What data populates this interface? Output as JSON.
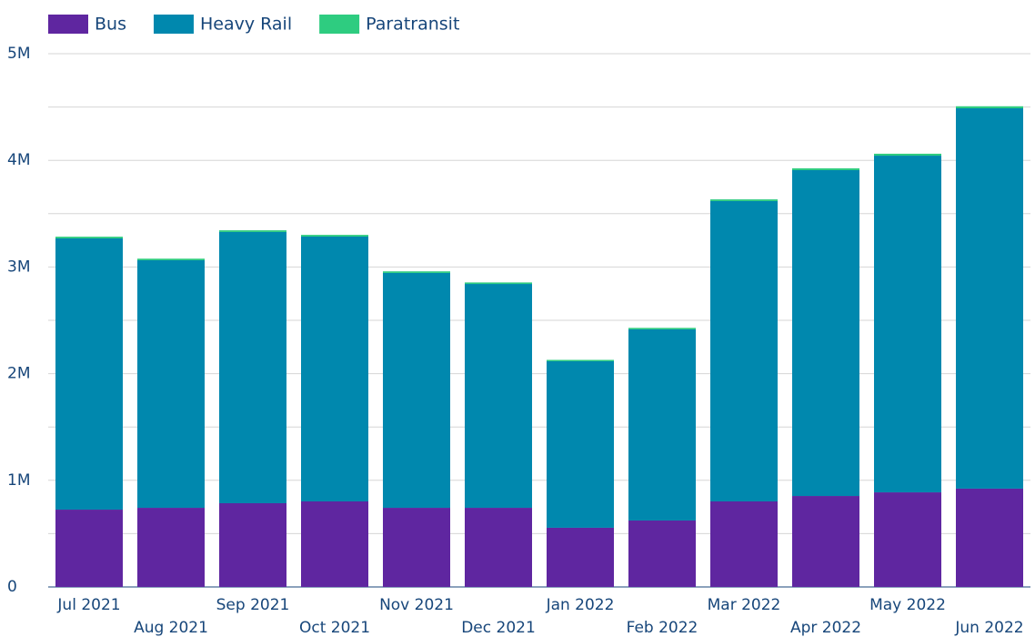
{
  "chart_data": {
    "type": "stacked_bar",
    "categories": [
      "Jul 2021",
      "Aug 2021",
      "Sep 2021",
      "Oct 2021",
      "Nov 2021",
      "Dec 2021",
      "Jan 2022",
      "Feb 2022",
      "Mar 2022",
      "Apr 2022",
      "May 2022",
      "Jun 2022"
    ],
    "series": [
      {
        "name": "Bus",
        "color": "#5f26a0",
        "values": [
          725000,
          742000,
          785000,
          802000,
          742000,
          742000,
          555000,
          623000,
          802000,
          853000,
          887000,
          922000
        ]
      },
      {
        "name": "Heavy Rail",
        "color": "#0088ae",
        "values": [
          2543000,
          2321000,
          2543000,
          2483000,
          2202000,
          2099000,
          1561000,
          1792000,
          2816000,
          3055000,
          3157000,
          3566000
        ]
      },
      {
        "name": "Paratransit",
        "color": "#2ecc80",
        "values": [
          16000,
          15000,
          16000,
          16000,
          15000,
          14000,
          13000,
          14000,
          16000,
          17000,
          18000,
          19000
        ]
      }
    ],
    "ylim": [
      0,
      5000000
    ],
    "yticks": [
      0,
      {
        "value": 1000000,
        "label": "1M"
      },
      {
        "value": 2000000,
        "label": "2M"
      },
      {
        "value": 3000000,
        "label": "3M"
      },
      {
        "value": 4000000,
        "label": "4M"
      },
      {
        "value": 5000000,
        "label": "5M"
      }
    ],
    "yminor_grid": [
      500000,
      1500000,
      2500000,
      3500000,
      4500000
    ],
    "grid": true,
    "legend": "top-left"
  }
}
